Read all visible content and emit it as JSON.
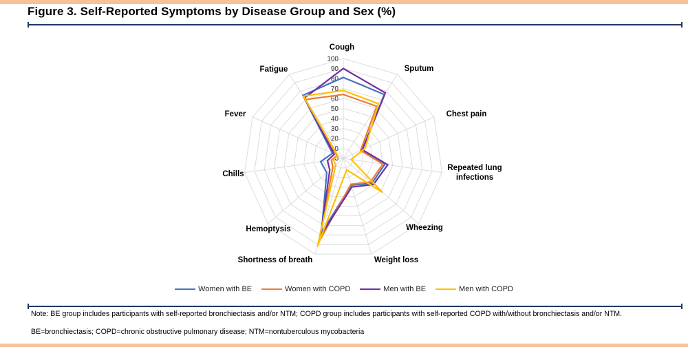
{
  "page": {
    "title": "Figure 3. Self-Reported Symptoms by Disease Group and Sex (%)",
    "note1": "Note: BE group includes participants with self-reported bronchiectasis and/or NTM; COPD group includes participants with self-reported COPD with/without bronchiectasis and/or NTM.",
    "note2": "BE=bronchiectasis; COPD=chronic obstructive pulmonary disease; NTM=nontuberculous mycobacteria",
    "accent_color": "#F5C29C",
    "rule_color": "#1F3864"
  },
  "chart_data": {
    "type": "radar",
    "title": "Self-Reported Symptoms by Disease Group and Sex (%)",
    "categories": [
      "Cough",
      "Sputum",
      "Chest pain",
      "Repeated lung infections",
      "Wheezing",
      "Weight loss",
      "Shortness of breath",
      "Hemoptysis",
      "Chills",
      "Fever",
      "Fatigue"
    ],
    "axis_ticks": [
      0,
      10,
      20,
      30,
      40,
      50,
      60,
      70,
      80,
      90,
      100
    ],
    "rmin": 0,
    "rmax": 100,
    "grid": true,
    "grid_color": "#DCDCDC",
    "legend_position": "bottom",
    "series": [
      {
        "name": "Women with BE",
        "color": "#4472C4",
        "values": [
          81,
          76,
          21,
          42,
          38,
          28,
          78,
          22,
          23,
          12,
          75
        ]
      },
      {
        "name": "Women with COPD",
        "color": "#ED7D31",
        "values": [
          64,
          62,
          19,
          40,
          36,
          27,
          88,
          14,
          12,
          7,
          70
        ]
      },
      {
        "name": "Men with BE",
        "color": "#7030A0",
        "values": [
          90,
          78,
          21,
          45,
          40,
          30,
          81,
          18,
          16,
          10,
          72
        ]
      },
      {
        "name": "Men with COPD",
        "color": "#FFC000",
        "values": [
          68,
          65,
          24,
          8,
          52,
          12,
          92,
          10,
          10,
          6,
          74
        ]
      }
    ]
  }
}
